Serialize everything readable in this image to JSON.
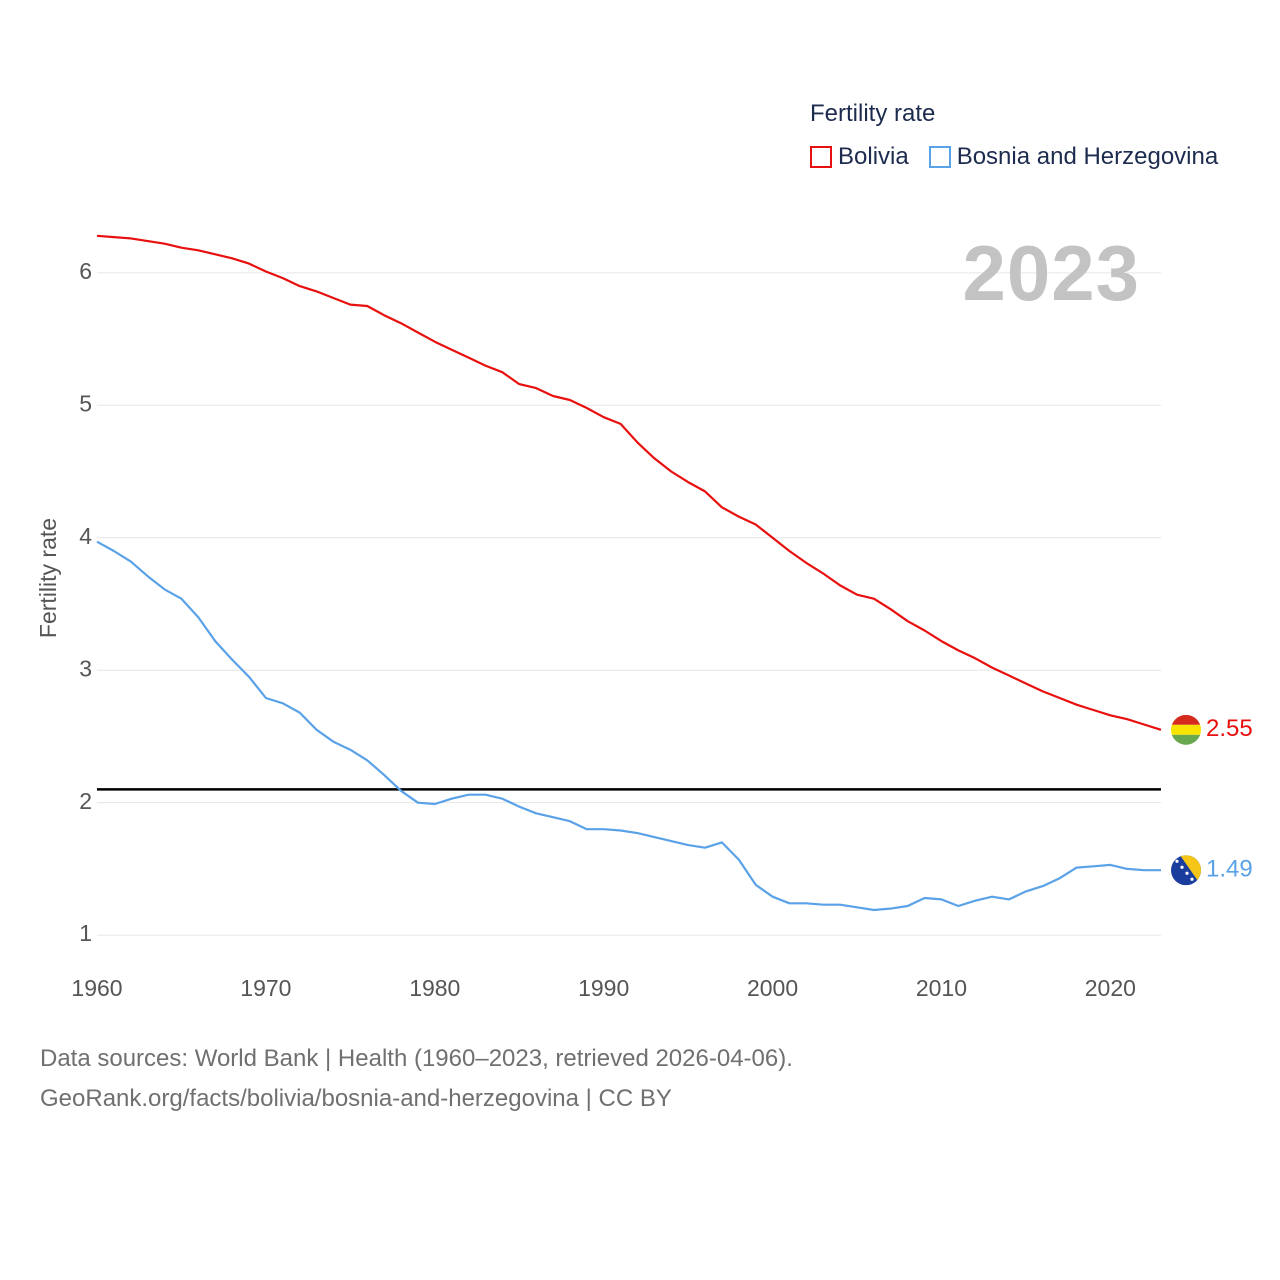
{
  "colors": {
    "bolivia": "#e8100e",
    "bosnia": "#5aa2e8",
    "reference": "#000000",
    "grid": "#e6e6e6",
    "year": "#c3c3c3"
  },
  "legend": {
    "title": "Fertility rate",
    "items": [
      "Bolivia",
      "Bosnia and Herzegovina"
    ]
  },
  "year_label": "2023",
  "source": {
    "line1": "Data sources: World Bank | Health (1960–2023, retrieved 2026-04-06).",
    "line2": "GeoRank.org/facts/bolivia/bosnia-and-herzegovina | CC BY"
  },
  "chart_data": {
    "type": "line",
    "title": "",
    "xlabel": "",
    "ylabel": "Fertility rate",
    "xlim": [
      1960,
      2023
    ],
    "ylim": [
      0.85,
      6.55
    ],
    "xticks": [
      "1960",
      "1970",
      "1980",
      "1990",
      "2000",
      "2010",
      "2020"
    ],
    "yticks": [
      "1",
      "2",
      "3",
      "4",
      "5",
      "6"
    ],
    "reference_line": 2.1,
    "x": [
      1960,
      1961,
      1962,
      1963,
      1964,
      1965,
      1966,
      1967,
      1968,
      1969,
      1970,
      1971,
      1972,
      1973,
      1974,
      1975,
      1976,
      1977,
      1978,
      1979,
      1980,
      1981,
      1982,
      1983,
      1984,
      1985,
      1986,
      1987,
      1988,
      1989,
      1990,
      1991,
      1992,
      1993,
      1994,
      1995,
      1996,
      1997,
      1998,
      1999,
      2000,
      2001,
      2002,
      2003,
      2004,
      2005,
      2006,
      2007,
      2008,
      2009,
      2010,
      2011,
      2012,
      2013,
      2014,
      2015,
      2016,
      2017,
      2018,
      2019,
      2020,
      2021,
      2022,
      2023
    ],
    "series": [
      {
        "name": "Bolivia",
        "end_label": "2.55",
        "values": [
          6.28,
          6.27,
          6.26,
          6.24,
          6.22,
          6.19,
          6.17,
          6.14,
          6.11,
          6.07,
          6.01,
          5.96,
          5.9,
          5.86,
          5.81,
          5.76,
          5.75,
          5.68,
          5.62,
          5.55,
          5.48,
          5.42,
          5.36,
          5.3,
          5.25,
          5.16,
          5.13,
          5.07,
          5.04,
          4.98,
          4.91,
          4.86,
          4.72,
          4.6,
          4.5,
          4.42,
          4.35,
          4.23,
          4.16,
          4.1,
          4.0,
          3.9,
          3.81,
          3.73,
          3.64,
          3.57,
          3.54,
          3.46,
          3.37,
          3.3,
          3.22,
          3.15,
          3.09,
          3.02,
          2.96,
          2.9,
          2.84,
          2.79,
          2.74,
          2.7,
          2.66,
          2.63,
          2.59,
          2.55
        ]
      },
      {
        "name": "Bosnia and Herzegovina",
        "end_label": "1.49",
        "values": [
          3.97,
          3.9,
          3.82,
          3.71,
          3.61,
          3.54,
          3.4,
          3.22,
          3.08,
          2.95,
          2.79,
          2.75,
          2.68,
          2.55,
          2.46,
          2.4,
          2.32,
          2.21,
          2.09,
          2.0,
          1.99,
          2.03,
          2.06,
          2.06,
          2.03,
          1.97,
          1.92,
          1.89,
          1.86,
          1.8,
          1.8,
          1.79,
          1.77,
          1.74,
          1.71,
          1.68,
          1.66,
          1.7,
          1.57,
          1.38,
          1.29,
          1.24,
          1.24,
          1.23,
          1.23,
          1.21,
          1.19,
          1.2,
          1.22,
          1.28,
          1.27,
          1.22,
          1.26,
          1.29,
          1.27,
          1.33,
          1.37,
          1.43,
          1.51,
          1.52,
          1.53,
          1.5,
          1.49,
          1.49
        ]
      }
    ]
  }
}
